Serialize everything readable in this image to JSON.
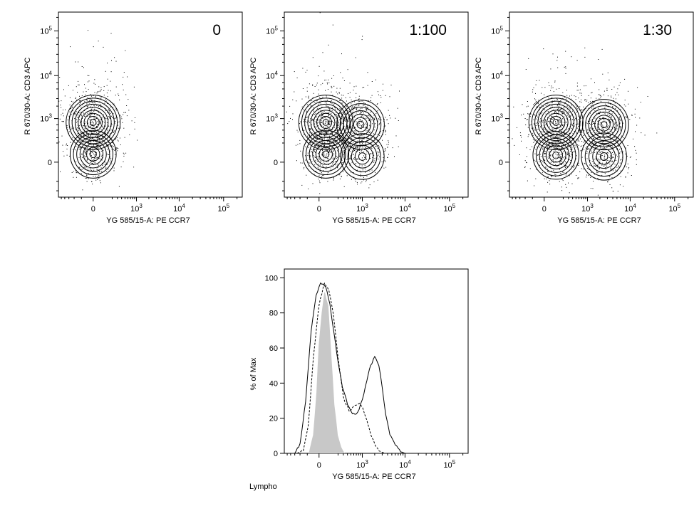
{
  "chart_data": [
    {
      "type": "scatter",
      "subtype": "contour-density",
      "sample_label": "0",
      "xlabel": "YG 585/15-A: PE CCR7",
      "ylabel": "R 670/30-A: CD3 APC",
      "x_scale": "biexponential",
      "y_scale": "biexponential",
      "x_ticks": [
        "0",
        "10^3",
        "10^4",
        "10^5"
      ],
      "y_ticks": [
        "0",
        "10^3",
        "10^4",
        "10^5"
      ],
      "populations": [
        {
          "ccr7": 0,
          "cd3": 800,
          "relative_density": 1.0
        },
        {
          "ccr7": 0,
          "cd3": 60,
          "relative_density": 0.5
        }
      ]
    },
    {
      "type": "scatter",
      "subtype": "contour-density",
      "sample_label": "1:100",
      "xlabel": "YG 585/15-A: PE CCR7",
      "ylabel": "R 670/30-A: CD3 APC",
      "x_scale": "biexponential",
      "y_scale": "biexponential",
      "x_ticks": [
        "0",
        "10^3",
        "10^4",
        "10^5"
      ],
      "y_ticks": [
        "0",
        "10^3",
        "10^4",
        "10^5"
      ],
      "populations": [
        {
          "ccr7": 50,
          "cd3": 800,
          "relative_density": 1.0
        },
        {
          "ccr7": 900,
          "cd3": 700,
          "relative_density": 0.6
        },
        {
          "ccr7": 50,
          "cd3": 60,
          "relative_density": 0.5
        },
        {
          "ccr7": 1000,
          "cd3": 40,
          "relative_density": 0.35
        }
      ]
    },
    {
      "type": "scatter",
      "subtype": "contour-density",
      "sample_label": "1:30",
      "xlabel": "YG 585/15-A: PE CCR7",
      "ylabel": "R 670/30-A: CD3 APC",
      "x_scale": "biexponential",
      "y_scale": "biexponential",
      "x_ticks": [
        "0",
        "10^3",
        "10^4",
        "10^5"
      ],
      "y_ticks": [
        "0",
        "10^3",
        "10^4",
        "10^5"
      ],
      "populations": [
        {
          "ccr7": 100,
          "cd3": 800,
          "relative_density": 1.0
        },
        {
          "ccr7": 2500,
          "cd3": 700,
          "relative_density": 0.7
        },
        {
          "ccr7": 100,
          "cd3": 50,
          "relative_density": 0.5
        },
        {
          "ccr7": 2500,
          "cd3": 40,
          "relative_density": 0.45
        }
      ]
    },
    {
      "type": "histogram",
      "xlabel": "YG 585/15-A: PE CCR7",
      "ylabel": "% of Max",
      "x_scale": "biexponential",
      "x_ticks": [
        "0",
        "10^3",
        "10^4",
        "10^5"
      ],
      "y_ticks": [
        0,
        20,
        40,
        60,
        80,
        100
      ],
      "ylim": [
        0,
        105
      ],
      "footer_label": "Lympho",
      "series": [
        {
          "style": "filled-gray",
          "x": [
            -80,
            -40,
            -15,
            0,
            20,
            40,
            70,
            100,
            140,
            190,
            250,
            320
          ],
          "y": [
            0,
            10,
            35,
            62,
            80,
            92,
            84,
            58,
            28,
            10,
            3,
            0
          ]
        },
        {
          "style": "dashed",
          "x": [
            -250,
            -150,
            -90,
            -40,
            0,
            40,
            80,
            130,
            200,
            300,
            450,
            650,
            850,
            1100,
            1500,
            2000,
            2700,
            3500
          ],
          "y": [
            0,
            2,
            15,
            55,
            85,
            97,
            93,
            80,
            55,
            32,
            24,
            27,
            29,
            24,
            13,
            5,
            1,
            0
          ]
        },
        {
          "style": "solid",
          "x": [
            -300,
            -200,
            -120,
            -60,
            -20,
            10,
            50,
            90,
            140,
            200,
            280,
            400,
            550,
            750,
            1000,
            1300,
            1600,
            2000,
            2500,
            3000,
            3600,
            4500,
            6000,
            8000,
            10000,
            100000,
            200000
          ],
          "y": [
            0,
            5,
            30,
            70,
            90,
            97,
            95,
            85,
            68,
            52,
            38,
            28,
            22,
            23,
            30,
            42,
            50,
            55,
            50,
            38,
            22,
            11,
            5,
            1,
            0,
            0,
            0
          ]
        }
      ]
    }
  ]
}
